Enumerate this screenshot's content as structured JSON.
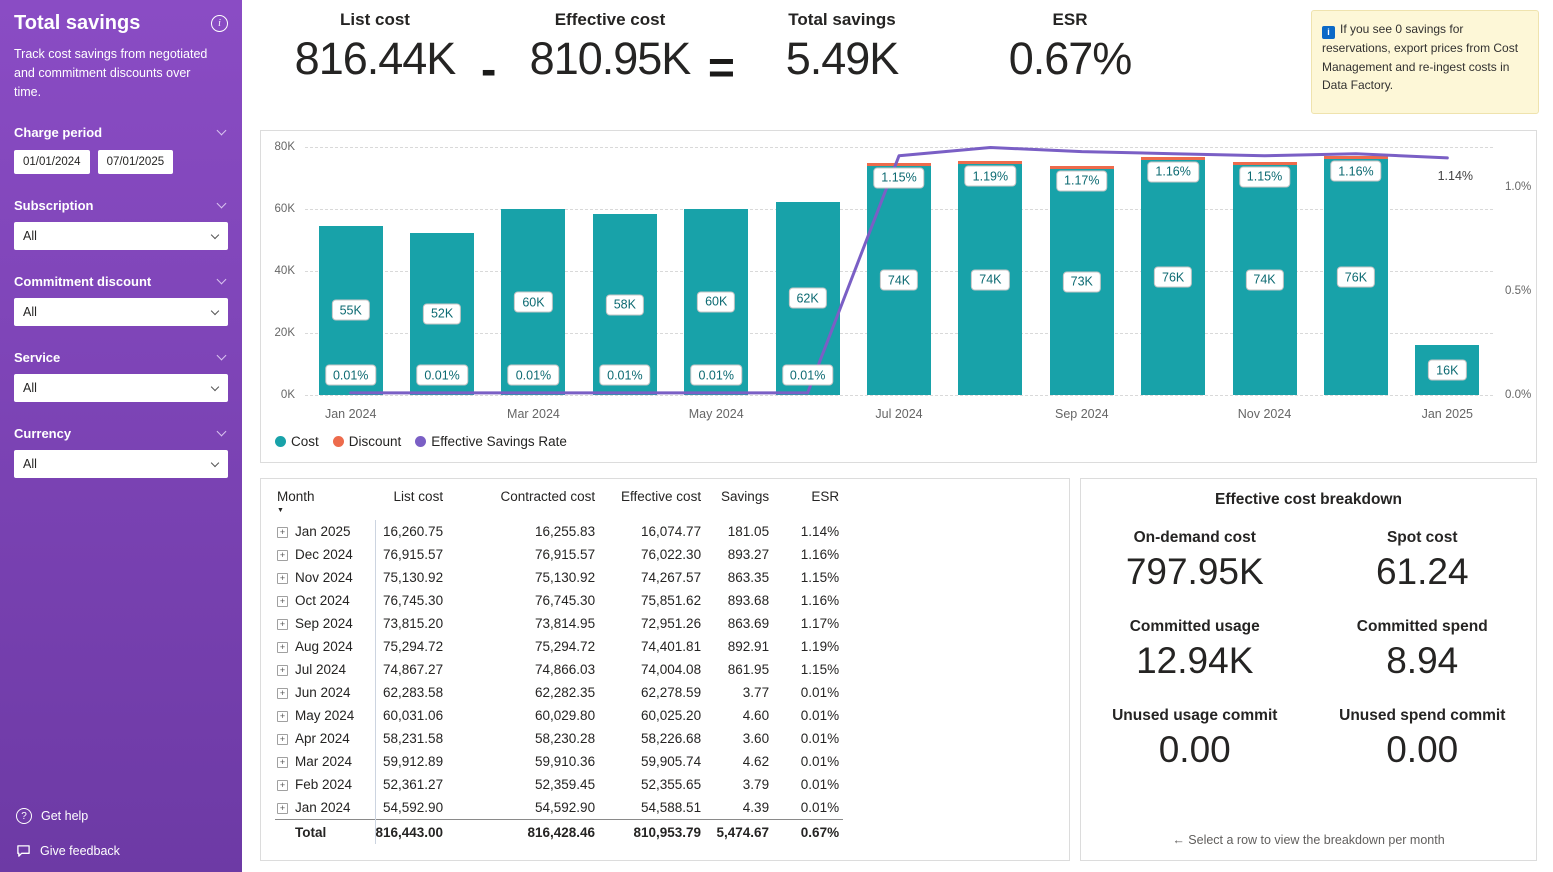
{
  "sidebar": {
    "title": "Total savings",
    "subtitle": "Track cost savings from negotiated and commitment discounts over time.",
    "charge_period": {
      "label": "Charge period",
      "start": "01/01/2024",
      "end": "07/01/2025"
    },
    "dropdowns": [
      {
        "label": "Subscription",
        "value": "All"
      },
      {
        "label": "Commitment discount",
        "value": "All"
      },
      {
        "label": "Service",
        "value": "All"
      },
      {
        "label": "Currency",
        "value": "All"
      }
    ],
    "get_help": "Get help",
    "give_feedback": "Give feedback"
  },
  "kpis": {
    "items": [
      {
        "label": "List cost",
        "value": "816.44K"
      },
      {
        "label": "Effective cost",
        "value": "810.95K"
      },
      {
        "label": "Total savings",
        "value": "5.49K"
      },
      {
        "label": "ESR",
        "value": "0.67%"
      }
    ],
    "minus": "-",
    "equals": "="
  },
  "note": {
    "text": "If you see 0 savings for reservations, export prices from Cost Management and re-ingest costs in Data Factory."
  },
  "chart_data": {
    "type": "bar+line",
    "categories": [
      "Jan 2024",
      "Feb 2024",
      "Mar 2024",
      "Apr 2024",
      "May 2024",
      "Jun 2024",
      "Jul 2024",
      "Aug 2024",
      "Sep 2024",
      "Oct 2024",
      "Nov 2024",
      "Dec 2024",
      "Jan 2025"
    ],
    "x_tick_labels": [
      "Jan 2024",
      "Mar 2024",
      "May 2024",
      "Jul 2024",
      "Sep 2024",
      "Nov 2024",
      "Jan 2025"
    ],
    "series": [
      {
        "name": "Cost",
        "type": "bar",
        "color": "#18A2A9",
        "values_k": [
          54.59,
          52.36,
          59.91,
          58.23,
          60.03,
          62.28,
          74.0,
          74.4,
          72.95,
          75.85,
          74.27,
          76.02,
          16.07
        ],
        "labels": [
          "55K",
          "52K",
          "60K",
          "58K",
          "60K",
          "62K",
          "74K",
          "74K",
          "73K",
          "76K",
          "74K",
          "76K",
          "16K"
        ]
      },
      {
        "name": "Discount",
        "type": "bar",
        "color": "#ED6B4C",
        "has_discount": [
          false,
          false,
          false,
          false,
          false,
          false,
          true,
          true,
          true,
          true,
          true,
          true,
          false
        ]
      },
      {
        "name": "Effective Savings Rate",
        "type": "line",
        "color": "#7A5FC5",
        "values_pct": [
          0.01,
          0.01,
          0.01,
          0.01,
          0.01,
          0.01,
          1.15,
          1.19,
          1.17,
          1.16,
          1.15,
          1.16,
          1.14
        ],
        "labels": [
          "0.01%",
          "0.01%",
          "0.01%",
          "0.01%",
          "0.01%",
          "0.01%",
          "1.15%",
          "1.19%",
          "1.17%",
          "1.16%",
          "1.15%",
          "1.16%",
          "1.14%"
        ]
      }
    ],
    "left_axis": {
      "ticks": [
        "0K",
        "20K",
        "40K",
        "60K",
        "80K"
      ],
      "max_k": 80
    },
    "right_axis": {
      "ticks": [
        "0.0%",
        "0.5%",
        "1.0%"
      ],
      "max_pct": 1.2
    },
    "legend": [
      {
        "label": "Cost",
        "color": "#18A2A9"
      },
      {
        "label": "Discount",
        "color": "#ED6B4C"
      },
      {
        "label": "Effective Savings Rate",
        "color": "#7A5FC5"
      }
    ]
  },
  "table": {
    "columns": [
      "Month",
      "List cost",
      "Contracted cost",
      "Effective cost",
      "Savings",
      "ESR"
    ],
    "rows": [
      [
        "Jan 2025",
        "16,260.75",
        "16,255.83",
        "16,074.77",
        "181.05",
        "1.14%"
      ],
      [
        "Dec 2024",
        "76,915.57",
        "76,915.57",
        "76,022.30",
        "893.27",
        "1.16%"
      ],
      [
        "Nov 2024",
        "75,130.92",
        "75,130.92",
        "74,267.57",
        "863.35",
        "1.15%"
      ],
      [
        "Oct 2024",
        "76,745.30",
        "76,745.30",
        "75,851.62",
        "893.68",
        "1.16%"
      ],
      [
        "Sep 2024",
        "73,815.20",
        "73,814.95",
        "72,951.26",
        "863.69",
        "1.17%"
      ],
      [
        "Aug 2024",
        "75,294.72",
        "75,294.72",
        "74,401.81",
        "892.91",
        "1.19%"
      ],
      [
        "Jul 2024",
        "74,867.27",
        "74,866.03",
        "74,004.08",
        "861.95",
        "1.15%"
      ],
      [
        "Jun 2024",
        "62,283.58",
        "62,282.35",
        "62,278.59",
        "3.77",
        "0.01%"
      ],
      [
        "May 2024",
        "60,031.06",
        "60,029.80",
        "60,025.20",
        "4.60",
        "0.01%"
      ],
      [
        "Apr 2024",
        "58,231.58",
        "58,230.28",
        "58,226.68",
        "3.60",
        "0.01%"
      ],
      [
        "Mar 2024",
        "59,912.89",
        "59,910.36",
        "59,905.74",
        "4.62",
        "0.01%"
      ],
      [
        "Feb 2024",
        "52,361.27",
        "52,359.45",
        "52,355.65",
        "3.79",
        "0.01%"
      ],
      [
        "Jan 2024",
        "54,592.90",
        "54,592.90",
        "54,588.51",
        "4.39",
        "0.01%"
      ]
    ],
    "total": [
      "Total",
      "816,443.00",
      "816,428.46",
      "810,953.79",
      "5,474.67",
      "0.67%"
    ]
  },
  "breakdown": {
    "title": "Effective cost breakdown",
    "items": [
      {
        "label": "On-demand cost",
        "value": "797.95K"
      },
      {
        "label": "Spot cost",
        "value": "61.24"
      },
      {
        "label": "Committed usage",
        "value": "12.94K"
      },
      {
        "label": "Committed spend",
        "value": "8.94"
      },
      {
        "label": "Unused usage commit",
        "value": "0.00"
      },
      {
        "label": "Unused spend commit",
        "value": "0.00"
      }
    ],
    "footer": "← Select a row to view the breakdown per month"
  },
  "colors": {
    "sidebar_top": "#8A4CC4",
    "sidebar_bottom": "#6D3AA5",
    "bar": "#18A2A9",
    "discount": "#ED6B4C",
    "line": "#7A5FC5",
    "note_bg": "#FDF7D7"
  }
}
